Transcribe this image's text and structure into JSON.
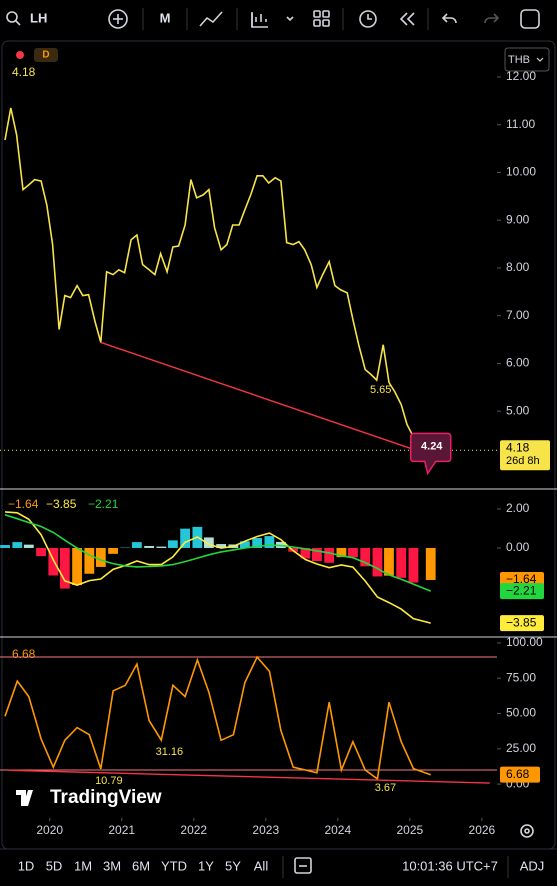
{
  "toolbar": {
    "symbol": "LH",
    "interval": "M"
  },
  "ranges": [
    "1D",
    "5D",
    "1M",
    "3M",
    "6M",
    "YTD",
    "1Y",
    "5Y",
    "All"
  ],
  "clock": "10:01:36 UTC+7",
  "adj": "ADJ",
  "currency": "THB",
  "badge": "D",
  "watermark": "TradingView",
  "chart_data": [
    {
      "type": "line",
      "xlim": [
        2019.31,
        2026.21
      ],
      "xticks": [
        2020,
        2021,
        2022,
        2023,
        2024,
        2025,
        2026
      ],
      "ylim": [
        3.39,
        12.67
      ],
      "yticks": [
        {
          "value": 12,
          "label": "12.00"
        },
        {
          "value": 11,
          "label": "11.00"
        },
        {
          "value": 10,
          "label": "10.00"
        },
        {
          "value": 9,
          "label": "9.00"
        },
        {
          "value": 8,
          "label": "8.00"
        },
        {
          "value": 7,
          "label": "7.00"
        },
        {
          "value": 6,
          "label": "6.00"
        },
        {
          "value": 5,
          "label": "5.00"
        }
      ],
      "x": [
        2019.38,
        2019.46,
        2019.54,
        2019.63,
        2019.71,
        2019.79,
        2019.88,
        2019.96,
        2020.04,
        2020.13,
        2020.21,
        2020.29,
        2020.38,
        2020.46,
        2020.54,
        2020.63,
        2020.71,
        2020.79,
        2020.88,
        2020.96,
        2021.04,
        2021.13,
        2021.21,
        2021.29,
        2021.38,
        2021.46,
        2021.54,
        2021.63,
        2021.71,
        2021.79,
        2021.88,
        2021.96,
        2022.04,
        2022.13,
        2022.21,
        2022.29,
        2022.38,
        2022.46,
        2022.54,
        2022.63,
        2022.71,
        2022.79,
        2022.88,
        2022.96,
        2023.04,
        2023.13,
        2023.21,
        2023.29,
        2023.38,
        2023.46,
        2023.54,
        2023.63,
        2023.71,
        2023.79,
        2023.88,
        2023.96,
        2024.04,
        2024.13,
        2024.21,
        2024.29,
        2024.38,
        2024.46,
        2024.54,
        2024.63,
        2024.71,
        2024.79,
        2024.88,
        2024.96,
        2025.04,
        2025.13,
        2025.21,
        2025.29
      ],
      "series": [
        {
          "type": "line",
          "color": "#f7e34a",
          "values": [
            10.68,
            11.35,
            10.79,
            9.64,
            9.74,
            9.85,
            9.82,
            9.32,
            8.49,
            6.71,
            7.42,
            7.38,
            7.63,
            7.42,
            7.44,
            6.87,
            6.44,
            7.92,
            7.86,
            7.96,
            7.9,
            8.59,
            8.69,
            8.07,
            7.96,
            7.86,
            8.3,
            7.92,
            8.44,
            8.46,
            8.9,
            9.85,
            9.47,
            9.53,
            9.64,
            8.84,
            8.38,
            8.49,
            8.9,
            8.9,
            9.22,
            9.53,
            9.93,
            9.93,
            9.78,
            9.89,
            9.82,
            8.53,
            8.49,
            8.55,
            8.38,
            8.07,
            7.59,
            7.86,
            8.13,
            7.63,
            7.54,
            7.48,
            6.92,
            6.39,
            5.87,
            5.77,
            5.65,
            6.39,
            5.6,
            5.41,
            5.14,
            4.72,
            4.49,
            4.3,
            4.2,
            4.18
          ]
        }
      ],
      "trendline": {
        "x": [
          2020.71,
          2025.26
        ],
        "values": [
          6.44,
          4.09
        ],
        "color": "#f23645"
      },
      "callout": 4.24,
      "countdown": "26d 8h"
    },
    {
      "type": "combo",
      "xlim": [
        2019.31,
        2026.21
      ],
      "ylim": [
        -4.51,
        2.97
      ],
      "yticks": [
        {
          "value": 2,
          "label": "2.00"
        },
        {
          "value": 0,
          "label": "0.00"
        }
      ],
      "x": [
        2019.38,
        2019.55,
        2019.71,
        2019.88,
        2020.05,
        2020.21,
        2020.38,
        2020.55,
        2020.71,
        2020.88,
        2021.05,
        2021.21,
        2021.38,
        2021.55,
        2021.71,
        2021.88,
        2022.05,
        2022.21,
        2022.38,
        2022.55,
        2022.71,
        2022.88,
        2023.05,
        2023.21,
        2023.38,
        2023.55,
        2023.71,
        2023.88,
        2024.05,
        2024.21,
        2024.38,
        2024.55,
        2024.71,
        2024.88,
        2025.05,
        2025.29
      ],
      "series": [
        {
          "type": "bar",
          "color": "#ff9800",
          "colors": {
            "rise_above": "#26c6da",
            "fall_above": "#b2dfdb",
            "rise_below": "#ff9800",
            "fall_below": "#ff1744"
          },
          "values": [
            0.15,
            0.3,
            0.17,
            -0.42,
            -1.41,
            -2.08,
            -1.9,
            -1.32,
            -0.97,
            -0.3,
            0.02,
            0.3,
            0.1,
            0.07,
            0.39,
            0.99,
            1.08,
            0.54,
            0.2,
            0.18,
            0.34,
            0.51,
            0.61,
            0.31,
            -0.19,
            -0.54,
            -0.67,
            -0.76,
            -0.47,
            -0.48,
            -0.94,
            -1.46,
            -1.42,
            -1.53,
            -1.77,
            -1.64
          ],
          "last": {
            "value": -1.64,
            "label": "−1.64"
          }
        },
        {
          "type": "line",
          "color": "#ffeb3b",
          "values": [
            1.85,
            1.8,
            1.47,
            0.68,
            -0.61,
            -1.68,
            -1.9,
            -1.67,
            -1.59,
            -1.1,
            -0.9,
            -0.67,
            -0.85,
            -0.85,
            -0.46,
            0.29,
            0.56,
            0.19,
            0,
            0.08,
            0.34,
            0.59,
            0.76,
            0.43,
            -0.14,
            -0.59,
            -0.82,
            -1.01,
            -0.87,
            -0.98,
            -1.69,
            -2.51,
            -2.8,
            -3.13,
            -3.62,
            -3.85
          ],
          "last": {
            "value": -3.85,
            "label": "−3.85"
          }
        },
        {
          "type": "line",
          "color": "#22d63e",
          "values": [
            1.7,
            1.5,
            1.3,
            1.1,
            0.8,
            0.4,
            0,
            -0.35,
            -0.62,
            -0.8,
            -0.92,
            -0.97,
            -0.95,
            -0.92,
            -0.85,
            -0.7,
            -0.52,
            -0.35,
            -0.2,
            -0.1,
            0,
            0.08,
            0.15,
            0.12,
            0.05,
            -0.05,
            -0.15,
            -0.25,
            -0.4,
            -0.5,
            -0.75,
            -1.05,
            -1.38,
            -1.6,
            -1.85,
            -2.21
          ],
          "last": {
            "value": -2.21,
            "label": "−2.21"
          }
        }
      ]
    },
    {
      "type": "line",
      "xlim": [
        2019.31,
        2026.21
      ],
      "ylim": [
        -5.6,
        103.5
      ],
      "yticks": [
        {
          "value": 100,
          "label": "100.00"
        },
        {
          "value": 75,
          "label": "75.00"
        },
        {
          "value": 50,
          "label": "50.00"
        },
        {
          "value": 25,
          "label": "25.00"
        },
        {
          "value": 0,
          "label": "0.00"
        }
      ],
      "x": [
        2019.38,
        2019.55,
        2019.71,
        2019.88,
        2020.05,
        2020.21,
        2020.38,
        2020.55,
        2020.71,
        2020.88,
        2021.05,
        2021.21,
        2021.38,
        2021.55,
        2021.71,
        2021.88,
        2022.05,
        2022.21,
        2022.38,
        2022.55,
        2022.71,
        2022.88,
        2023.05,
        2023.21,
        2023.38,
        2023.55,
        2023.71,
        2023.88,
        2024.05,
        2024.21,
        2024.38,
        2024.55,
        2024.71,
        2024.88,
        2025.05,
        2025.29
      ],
      "series": [
        {
          "type": "line",
          "color": "#ff9800",
          "values": [
            48,
            73,
            62,
            32,
            12,
            31,
            40,
            35,
            10.79,
            66,
            70,
            85,
            45,
            31.16,
            70,
            62,
            88,
            65,
            31,
            35,
            72,
            90,
            80,
            38,
            12,
            10,
            8,
            58,
            10,
            30,
            10,
            3.67,
            58,
            30,
            11,
            6.68
          ]
        }
      ],
      "bands": {
        "values": [
          90,
          10
        ],
        "color": "#f77c80"
      },
      "trendline": {
        "x": [
          2019.44,
          2026.11
        ],
        "values": [
          9.8,
          0.7
        ],
        "color": "#f23645"
      }
    }
  ]
}
